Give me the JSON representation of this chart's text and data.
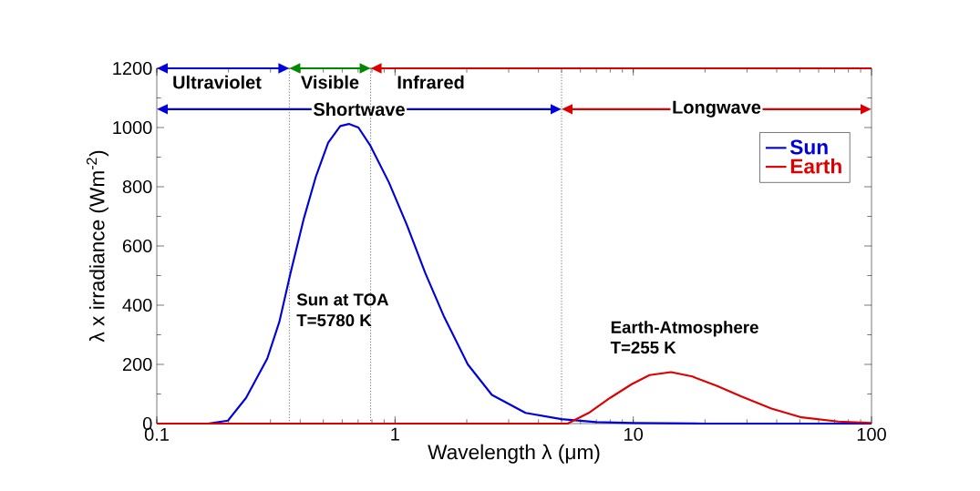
{
  "chart_data": {
    "type": "line",
    "xlabel": "Wavelength λ (μm)",
    "ylabel": "λ x irradiance (Wm$^{-2}$)",
    "log": "x",
    "xlim": [
      0.1,
      100
    ],
    "xticks": [
      0.1,
      1,
      10,
      100
    ],
    "ylim": [
      0,
      1200
    ],
    "yticks": [
      0,
      200,
      400,
      600,
      800,
      1000,
      1200
    ],
    "grid": false,
    "legend": "top right",
    "line_style": "solid",
    "marker": "none",
    "series": [
      {
        "name": "Sun",
        "color": "#0000dd",
        "x": [
          0.164,
          0.199,
          0.237,
          0.291,
          0.327,
          0.364,
          0.414,
          0.466,
          0.524,
          0.589,
          0.64,
          0.702,
          0.789,
          0.942,
          1.12,
          1.34,
          1.6,
          2.02,
          2.55,
          3.53,
          5.0,
          7.0,
          10,
          20,
          100
        ],
        "values": [
          0,
          10,
          87,
          220,
          344,
          508,
          692,
          836,
          949,
          1005,
          1012,
          1000,
          938,
          815,
          672,
          508,
          364,
          200,
          97,
          36,
          15,
          5,
          2,
          0,
          0
        ]
      },
      {
        "name": "Earth",
        "color": "#dd0000",
        "x": [
          0.1,
          5.0,
          5.3,
          6.5,
          8.0,
          9.85,
          11.7,
          14.4,
          17.7,
          22.4,
          28.3,
          38.0,
          50.9,
          72.5,
          100
        ],
        "values": [
          0,
          0,
          0,
          36,
          87,
          133,
          164,
          174,
          159,
          128,
          92,
          51,
          21,
          7,
          2
        ]
      }
    ],
    "ref_lines": [
      {
        "axis": "x",
        "value": 0.36,
        "color": "#000000",
        "line_style": "dotted"
      },
      {
        "axis": "x",
        "value": 0.79,
        "color": "#000000",
        "line_style": "dotted"
      },
      {
        "axis": "x",
        "value": 5,
        "color": "#000000",
        "line_style": "dotted"
      }
    ],
    "annotations": [
      "Ultraviolet",
      "Visible",
      "Infrared",
      "Shortwave",
      "Longwave",
      "Sun at TOA",
      "T=5780 K",
      "Earth-Atmosphere",
      "T=255 K"
    ]
  }
}
